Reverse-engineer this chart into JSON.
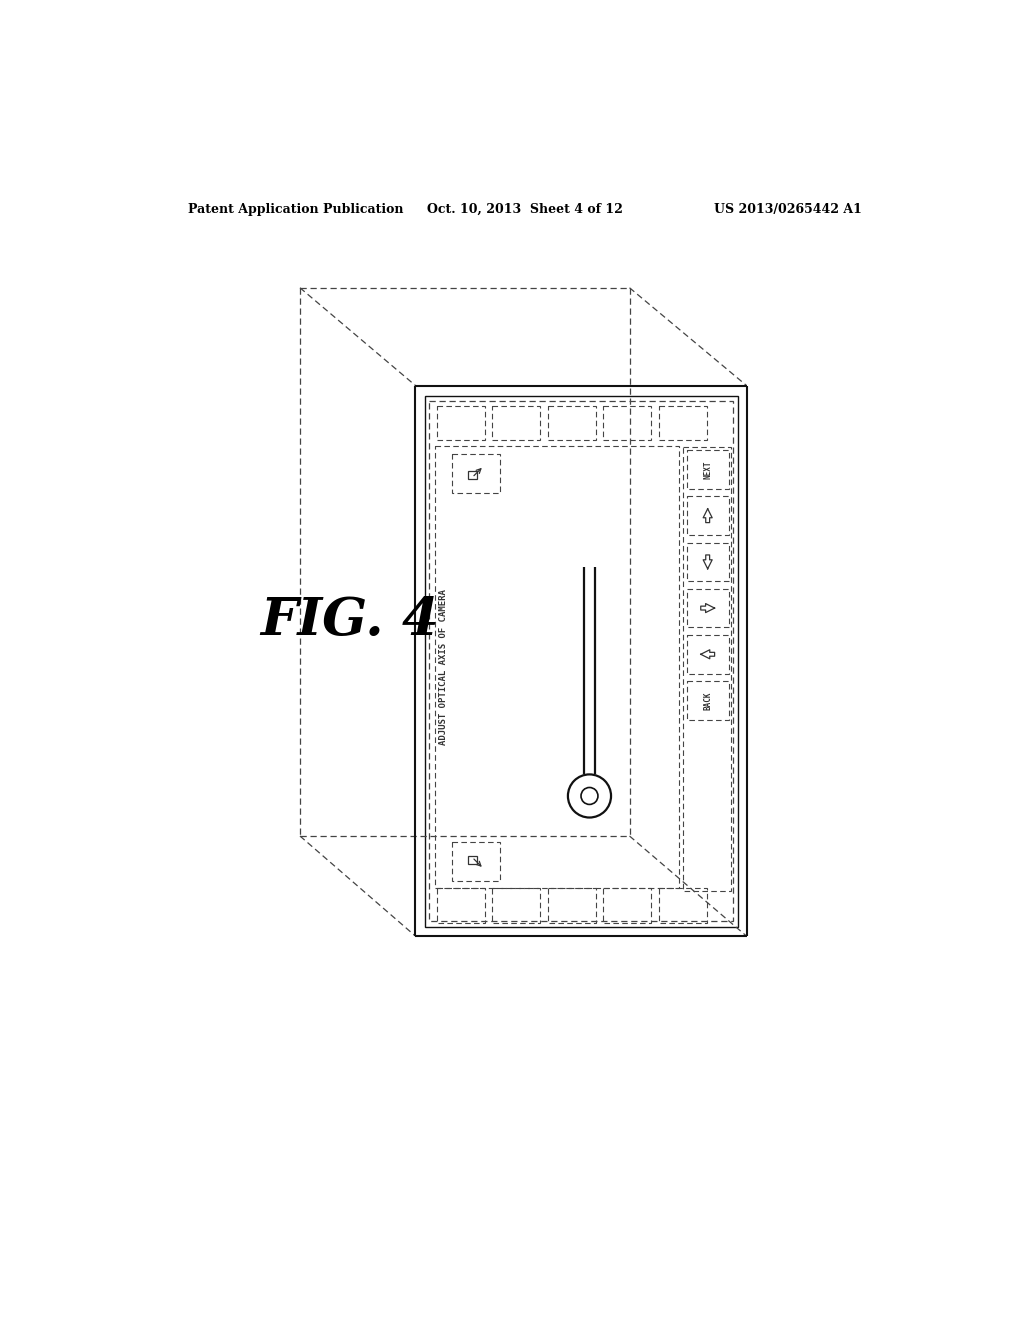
{
  "background_color": "#ffffff",
  "header_left": "Patent Application Publication",
  "header_center": "Oct. 10, 2013  Sheet 4 of 12",
  "header_right": "US 2013/0265442 A1",
  "fig_label": "FIG. 4",
  "line_color": "#000000",
  "dashed_color": "#555555"
}
